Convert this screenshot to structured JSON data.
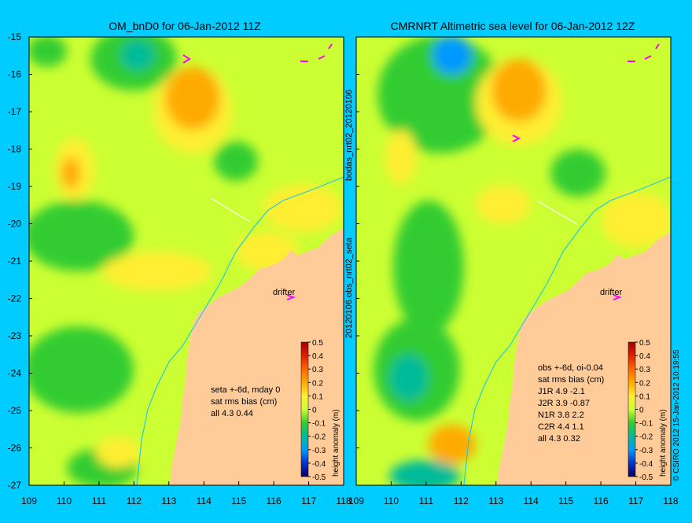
{
  "left_panel": {
    "title": "OM_bnD0 for 06-Jan-2012 11Z",
    "side_label": "20120106.obs_nrt02_seta",
    "drifter_label": "drifter",
    "stats_lines": [
      "seta +-6d, mday 0",
      "sat rms bias (cm)",
      "all 4.3 0.44"
    ]
  },
  "right_panel": {
    "title": "CMRNRT Altimetric sea level  for 06-Jan-2012 12Z",
    "side_label": "bodas_nrt02_20120106",
    "drifter_label": "drifter",
    "stats_lines": [
      "obs +-6d, oi-0.04",
      "sat rms bias (cm)",
      "J1R   4.9 -2.1",
      "J2R   3.9 -0.87",
      "N1R   3.8 2.2",
      "C2R   4.4 1.1",
      "all 4.3 0.32"
    ]
  },
  "axes": {
    "x_ticks": [
      "109",
      "110",
      "111",
      "112",
      "113",
      "114",
      "115",
      "116",
      "117",
      "118"
    ],
    "y_ticks": [
      "-15",
      "-16",
      "-17",
      "-18",
      "-19",
      "-20",
      "-21",
      "-22",
      "-23",
      "-24",
      "-25",
      "-26",
      "-27"
    ]
  },
  "colorbar": {
    "ticks": [
      "0.5",
      "0.4",
      "0.3",
      "0.2",
      "0.1",
      "0",
      "-0.1",
      "-0.2",
      "-0.3",
      "-0.4",
      "-0.5"
    ],
    "label": "height anomaly (m)"
  },
  "credit": "© CSIRO 2012  15-Jan-2012 10:19:55",
  "colors": {
    "background": "#00ccff",
    "land": "#ffcc99",
    "base_field": "#ccff33",
    "drifter": "#ff00ff"
  }
}
